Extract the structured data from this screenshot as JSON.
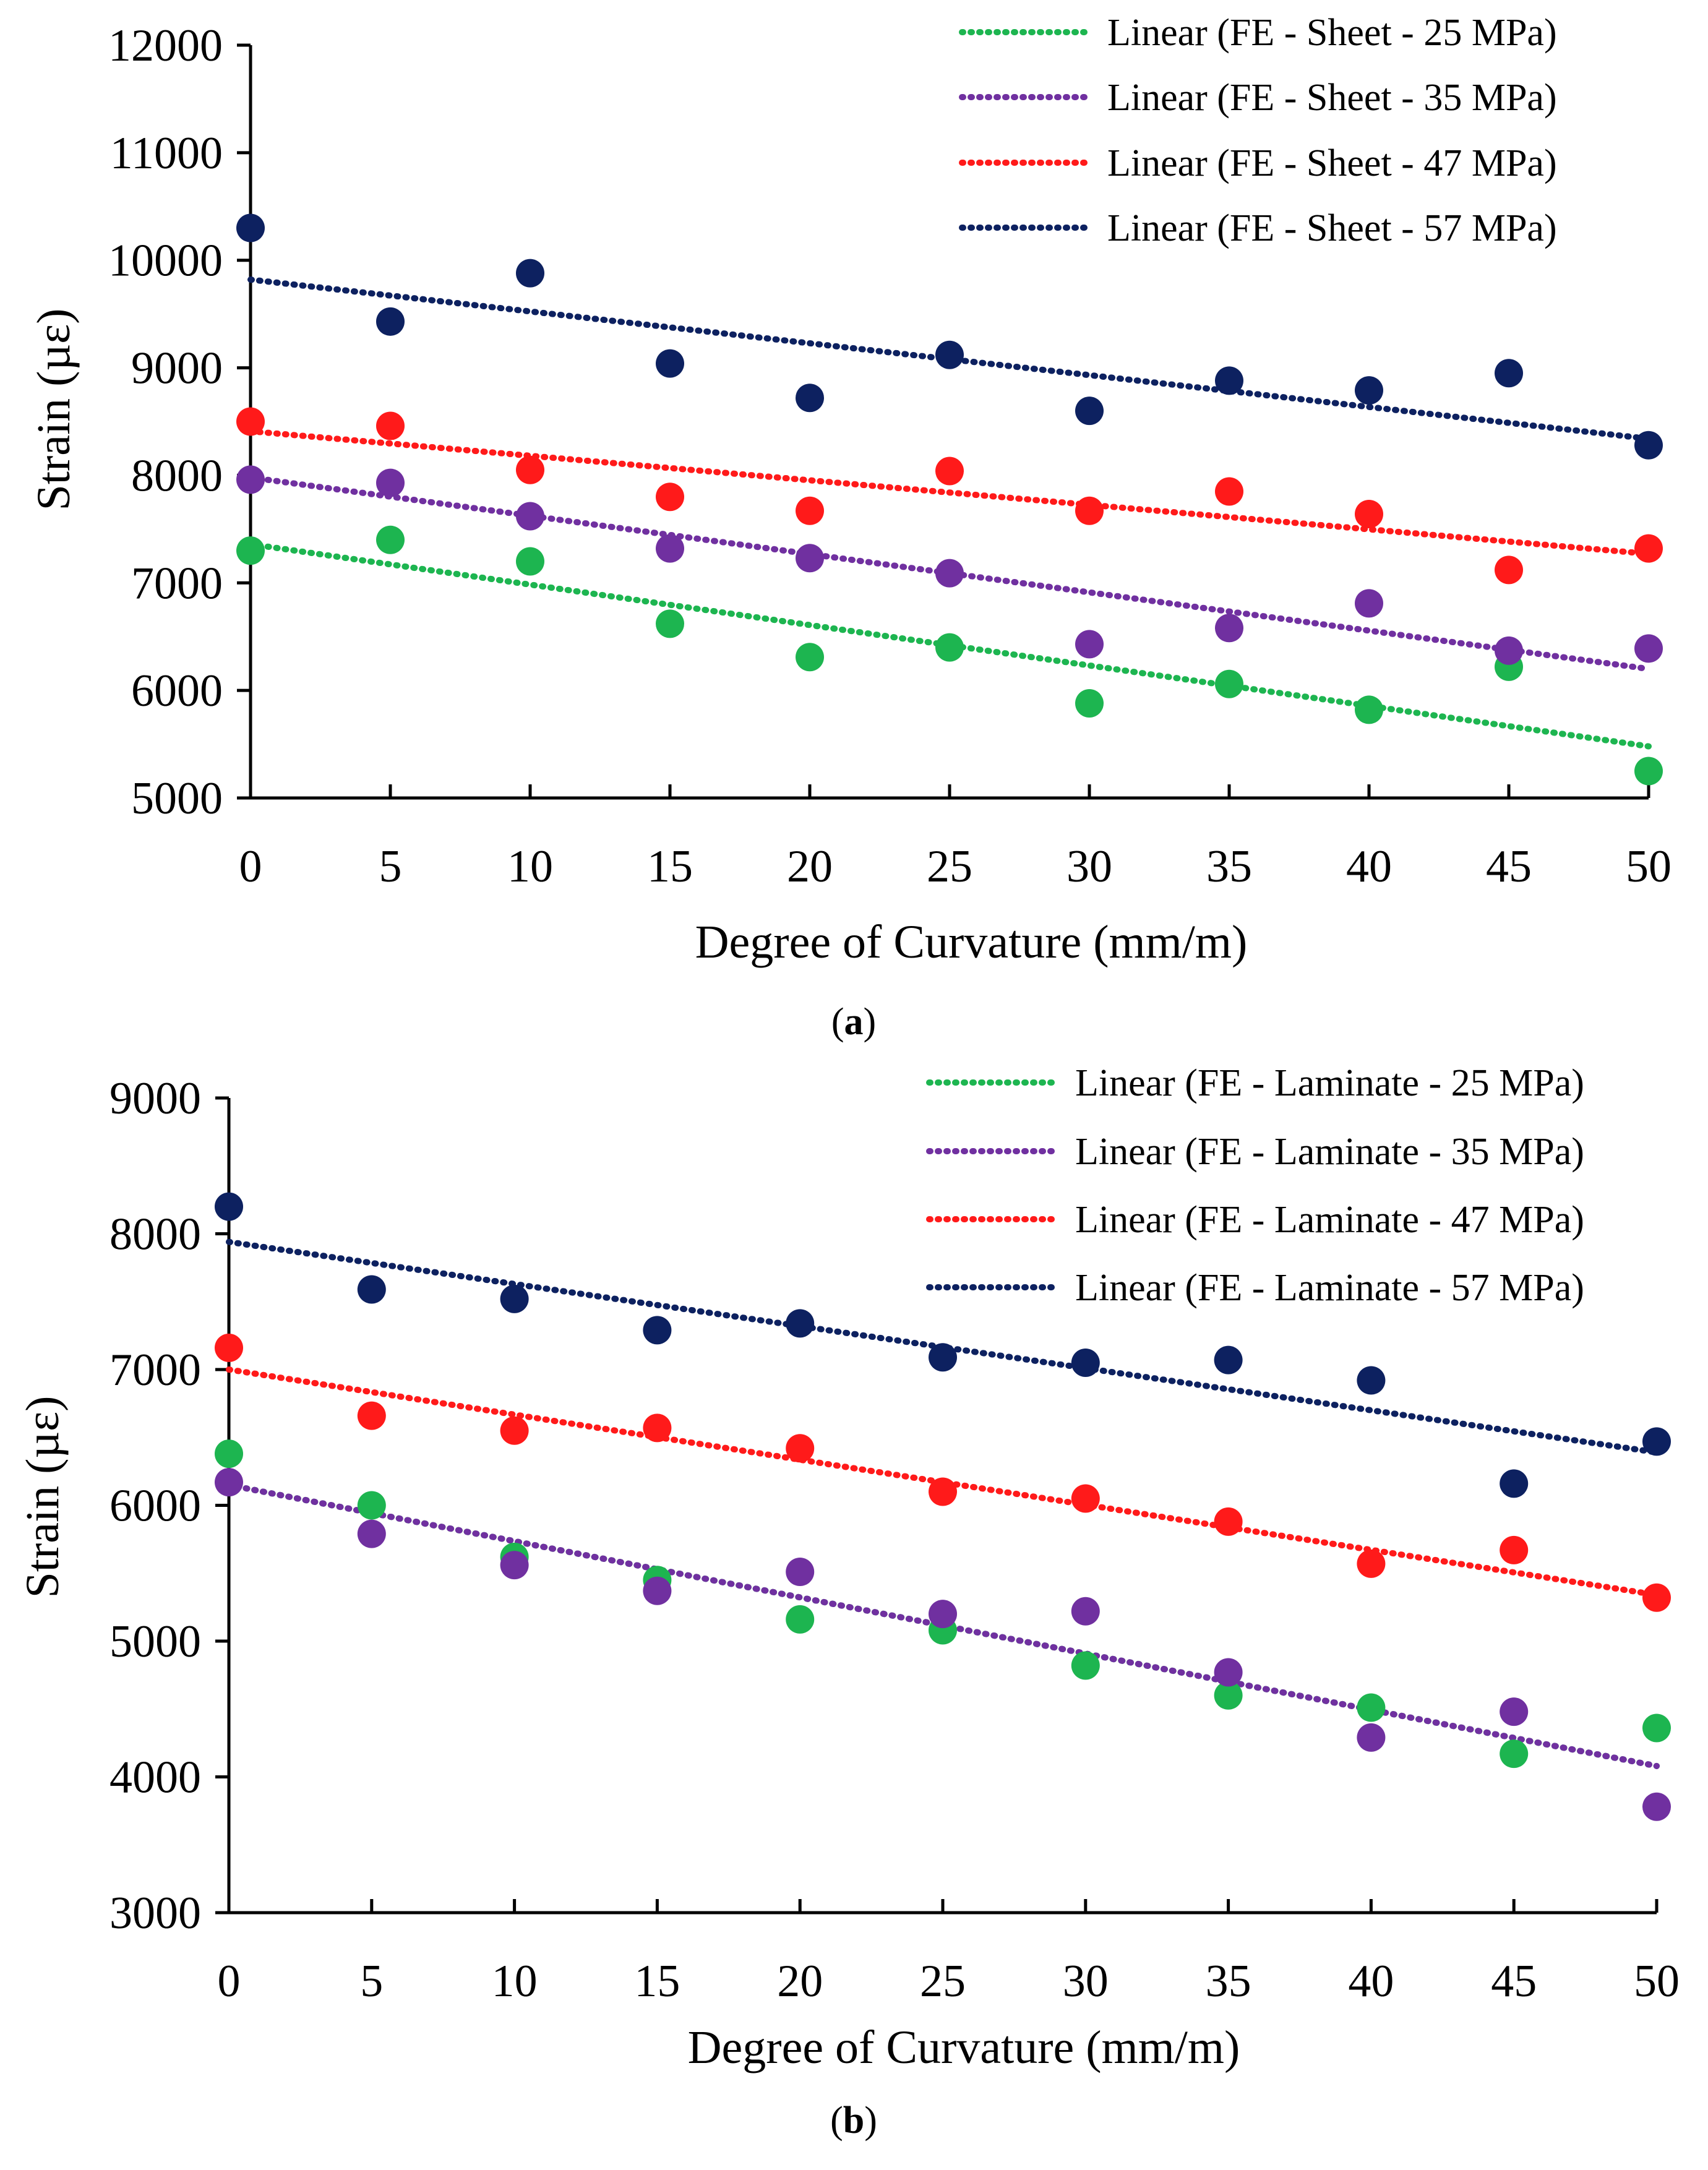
{
  "chart_data": [
    {
      "type": "scatter",
      "panel": "a",
      "caption_letter": "a",
      "xlabel": "Degree of Curvature (mm/m)",
      "ylabel": "Strain (µε)",
      "xlim": [
        0,
        50
      ],
      "ylim": [
        5000,
        12000
      ],
      "x_ticks": [
        0,
        5,
        10,
        15,
        20,
        25,
        30,
        35,
        40,
        45,
        50
      ],
      "y_ticks": [
        5000,
        6000,
        7000,
        8000,
        9000,
        10000,
        11000,
        12000
      ],
      "legend_position": "top-right",
      "series": [
        {
          "name": "Linear (FE - Sheet - 25 MPa)",
          "color": "#1db550",
          "x": [
            0,
            5,
            10,
            15,
            20,
            25,
            30,
            35,
            40,
            45,
            50
          ],
          "values": [
            7300,
            7400,
            7200,
            6620,
            6310,
            6400,
            5880,
            6060,
            5820,
            6220,
            5250
          ],
          "trend": [
            7360,
            5480
          ]
        },
        {
          "name": "Linear (FE - Sheet - 35 MPa)",
          "color": "#7030a0",
          "x": [
            0,
            5,
            10,
            15,
            20,
            25,
            30,
            35,
            40,
            45,
            50
          ],
          "values": [
            7960,
            7930,
            7620,
            7320,
            7230,
            7090,
            6430,
            6580,
            6810,
            6370,
            6390
          ],
          "trend": [
            7980,
            6200
          ]
        },
        {
          "name": "Linear (FE - Sheet - 47 MPa)",
          "color": "#ff1a1a",
          "x": [
            0,
            5,
            10,
            15,
            20,
            25,
            30,
            35,
            40,
            45,
            50
          ],
          "values": [
            8500,
            8460,
            8050,
            7800,
            7670,
            8040,
            7670,
            7850,
            7640,
            7120,
            7320
          ],
          "trend": [
            8410,
            7270
          ]
        },
        {
          "name": "Linear (FE - Sheet - 57 MPa)",
          "color": "#0d2160",
          "x": [
            0,
            5,
            10,
            15,
            20,
            25,
            30,
            35,
            40,
            45,
            50
          ],
          "values": [
            10300,
            9430,
            9880,
            9040,
            8720,
            9120,
            8600,
            8880,
            8790,
            8950,
            8280
          ],
          "trend": [
            9820,
            8340
          ]
        }
      ]
    },
    {
      "type": "scatter",
      "panel": "b",
      "caption_letter": "b",
      "xlabel": "Degree of Curvature (mm/m)",
      "ylabel": "Strain (µε)",
      "xlim": [
        0,
        50
      ],
      "ylim": [
        3000,
        9000
      ],
      "x_ticks": [
        0,
        5,
        10,
        15,
        20,
        25,
        30,
        35,
        40,
        45,
        50
      ],
      "y_ticks": [
        3000,
        4000,
        5000,
        6000,
        7000,
        8000,
        9000
      ],
      "legend_position": "top-right",
      "series": [
        {
          "name": "Linear (FE - Laminate - 25 MPa)",
          "color": "#1db550",
          "x": [
            0,
            5,
            10,
            15,
            20,
            25,
            30,
            35,
            40,
            45,
            50
          ],
          "values": [
            6380,
            6000,
            5620,
            5450,
            5160,
            5080,
            4820,
            4600,
            4510,
            4170,
            4360
          ],
          "trend": [
            6150,
            4080
          ]
        },
        {
          "name": "Linear (FE - Laminate - 35 MPa)",
          "color": "#7030a0",
          "x": [
            0,
            5,
            10,
            15,
            20,
            25,
            30,
            35,
            40,
            45,
            50
          ],
          "values": [
            6170,
            5790,
            5560,
            5370,
            5510,
            5200,
            5220,
            4770,
            4290,
            4480,
            3780
          ],
          "trend": [
            6150,
            4080
          ]
        },
        {
          "name": "Linear (FE - Laminate - 47 MPa)",
          "color": "#ff1a1a",
          "x": [
            0,
            5,
            10,
            15,
            20,
            25,
            30,
            35,
            40,
            45,
            50
          ],
          "values": [
            7160,
            6660,
            6550,
            6570,
            6420,
            6100,
            6050,
            5880,
            5570,
            5670,
            5320
          ],
          "trend": [
            7000,
            5340
          ]
        },
        {
          "name": "Linear (FE - Laminate - 57 MPa)",
          "color": "#0d2160",
          "x": [
            0,
            5,
            10,
            15,
            20,
            25,
            30,
            35,
            40,
            45,
            50
          ],
          "values": [
            8200,
            7590,
            7520,
            7290,
            7340,
            7090,
            7050,
            7070,
            6920,
            6160,
            6470
          ],
          "trend": [
            7940,
            6390
          ]
        }
      ]
    }
  ]
}
